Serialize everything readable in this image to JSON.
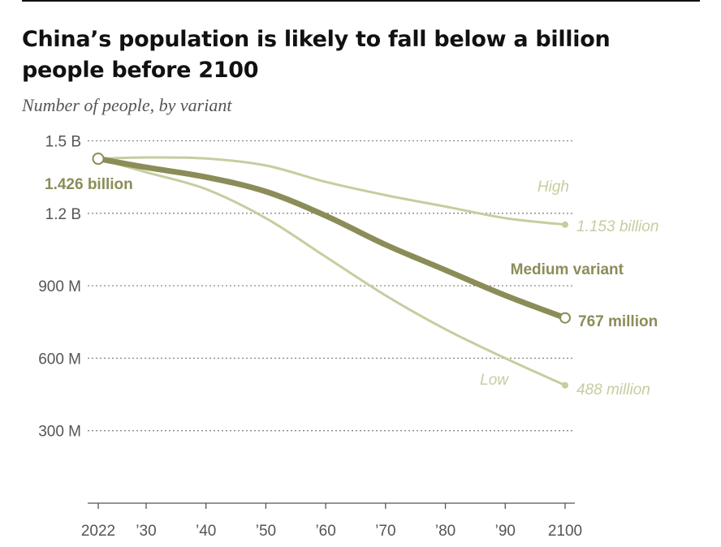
{
  "title": "China’s population is likely to fall below a billion people before 2100",
  "subtitle": "Number of people, by variant",
  "colors": {
    "medium": "#8c8c59",
    "light": "#c8cc9f",
    "grid": "#888888",
    "axis": "#555555"
  },
  "chart_data": {
    "type": "line",
    "x_ticks": [
      2022,
      2030,
      2040,
      2050,
      2060,
      2070,
      2080,
      2090,
      2100
    ],
    "x_tick_labels": [
      "2022",
      "’30",
      "’40",
      "’50",
      "’60",
      "’70",
      "’80",
      "’90",
      "2100"
    ],
    "y_ticks": [
      300,
      600,
      900,
      1200,
      1500
    ],
    "y_tick_labels": [
      "300 M",
      "600 M",
      "900 M",
      "1.2 B",
      "1.5 B"
    ],
    "ylim": [
      0,
      1500
    ],
    "xlim": [
      2022,
      2100
    ],
    "series": [
      {
        "name": "High",
        "x": [
          2022,
          2030,
          2040,
          2050,
          2060,
          2070,
          2080,
          2090,
          2100
        ],
        "values": [
          1426,
          1431,
          1427,
          1398,
          1330,
          1275,
          1228,
          1180,
          1153
        ]
      },
      {
        "name": "Medium variant",
        "x": [
          2022,
          2030,
          2040,
          2050,
          2060,
          2070,
          2080,
          2090,
          2100
        ],
        "values": [
          1426,
          1390,
          1350,
          1290,
          1190,
          1070,
          965,
          860,
          767
        ]
      },
      {
        "name": "Low",
        "x": [
          2022,
          2030,
          2040,
          2050,
          2060,
          2070,
          2080,
          2090,
          2100
        ],
        "values": [
          1426,
          1370,
          1300,
          1180,
          1020,
          860,
          720,
          600,
          488
        ]
      }
    ],
    "annotations": {
      "start": "1.426 billion",
      "high_label": "High",
      "high_end": "1.153 billion",
      "medium_label": "Medium variant",
      "medium_end": "767 million",
      "low_label": "Low",
      "low_end": "488 million"
    }
  }
}
